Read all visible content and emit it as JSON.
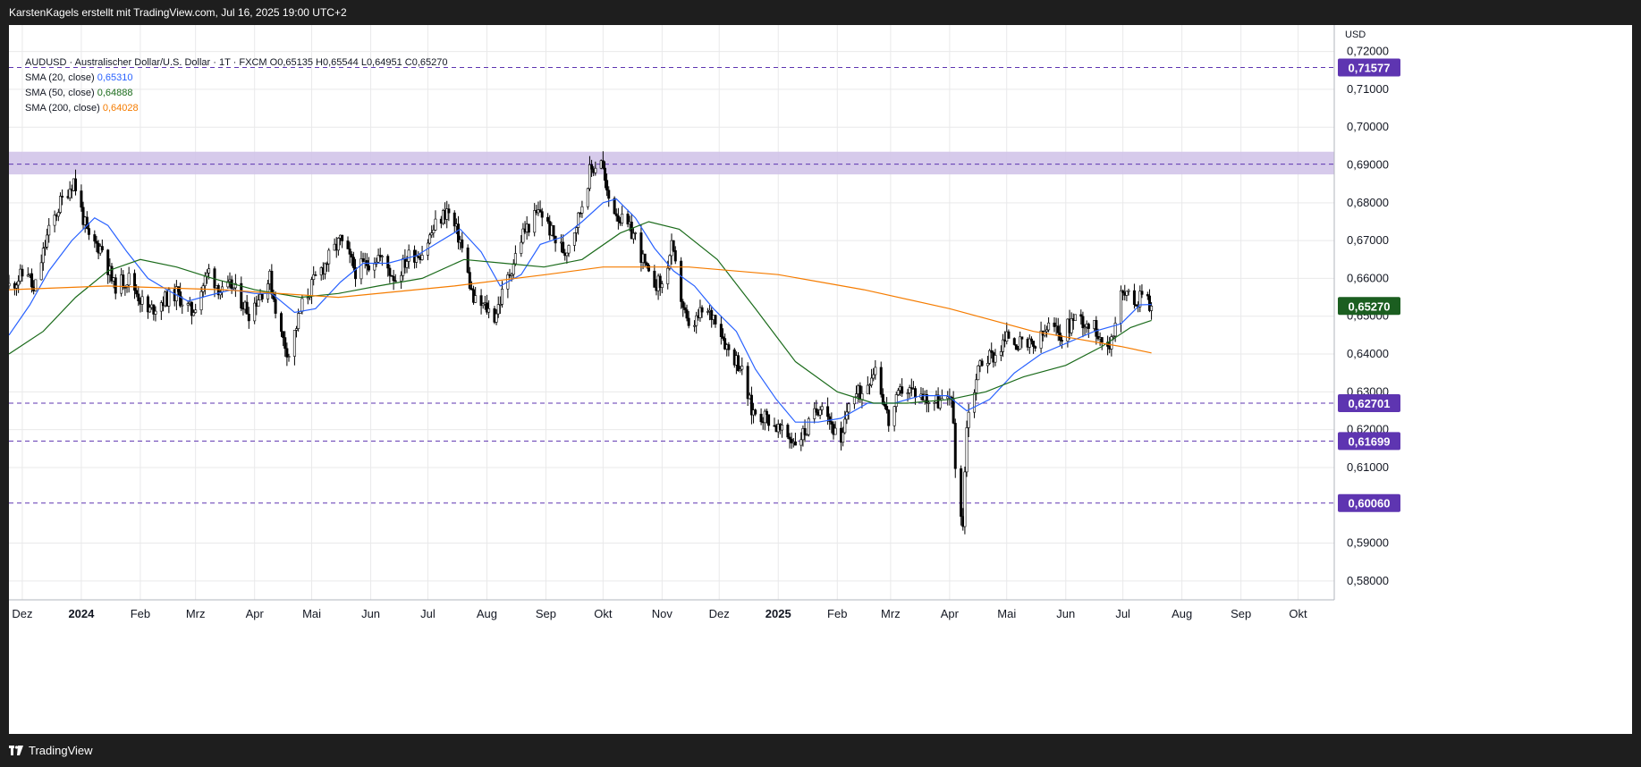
{
  "header": {
    "attribution": "KarstenKagels erstellt mit TradingView.com, Jul 16, 2025 19:00 UTC+2"
  },
  "footer": {
    "brand": "TradingView"
  },
  "legend": {
    "symbol_line": "AUDUSD · Australischer Dollar/U.S. Dollar · 1T · FXCM",
    "ohlc": {
      "o_label": "O",
      "o": "0,65135",
      "h_label": "H",
      "h": "0,65544",
      "l_label": "L",
      "l": "0,64951",
      "c_label": "C",
      "c": "0,65270"
    },
    "indicators": [
      {
        "label": "SMA (20, close)",
        "value": "0,65310",
        "color": "#2962ff"
      },
      {
        "label": "SMA (50, close)",
        "value": "0,64888",
        "color": "#1b6b1b"
      },
      {
        "label": "SMA (200, close)",
        "value": "0,64028",
        "color": "#f57c00"
      }
    ]
  },
  "colors": {
    "up": "#ffffff",
    "down": "#000000",
    "candle_border": "#000000",
    "zone": "#d1c4e9",
    "hline": "#5e35b1",
    "label_bg": "#5e35b1",
    "last_price_bg": "#1b5e20",
    "grid": "#e9e9ea"
  },
  "chart_data": {
    "type": "candlestick",
    "symbol": "AUDUSD",
    "timeframe": "1T",
    "currency_label": "USD",
    "ylim": [
      0.575,
      0.727
    ],
    "y_ticks": [
      {
        "value": 0.72,
        "label": "0,72000"
      },
      {
        "value": 0.71,
        "label": "0,71000"
      },
      {
        "value": 0.7,
        "label": "0,70000"
      },
      {
        "value": 0.69,
        "label": "0,69000"
      },
      {
        "value": 0.68,
        "label": "0,68000"
      },
      {
        "value": 0.67,
        "label": "0,67000"
      },
      {
        "value": 0.66,
        "label": "0,66000"
      },
      {
        "value": 0.65,
        "label": "0,65000"
      },
      {
        "value": 0.64,
        "label": "0,64000"
      },
      {
        "value": 0.63,
        "label": "0,63000"
      },
      {
        "value": 0.62,
        "label": "0,62000"
      },
      {
        "value": 0.61,
        "label": "0,61000"
      },
      {
        "value": 0.59,
        "label": "0,59000"
      },
      {
        "value": 0.58,
        "label": "0,58000"
      }
    ],
    "x_ticks": [
      {
        "date": "2023-12-01",
        "label": "Dez",
        "bold": false
      },
      {
        "date": "2024-01-01",
        "label": "2024",
        "bold": true
      },
      {
        "date": "2024-02-01",
        "label": "Feb",
        "bold": false
      },
      {
        "date": "2024-03-01",
        "label": "Mrz",
        "bold": false
      },
      {
        "date": "2024-04-01",
        "label": "Apr",
        "bold": false
      },
      {
        "date": "2024-05-01",
        "label": "Mai",
        "bold": false
      },
      {
        "date": "2024-06-01",
        "label": "Jun",
        "bold": false
      },
      {
        "date": "2024-07-01",
        "label": "Jul",
        "bold": false
      },
      {
        "date": "2024-08-01",
        "label": "Aug",
        "bold": false
      },
      {
        "date": "2024-09-01",
        "label": "Sep",
        "bold": false
      },
      {
        "date": "2024-10-01",
        "label": "Okt",
        "bold": false
      },
      {
        "date": "2024-11-01",
        "label": "Nov",
        "bold": false
      },
      {
        "date": "2024-12-01",
        "label": "Dez",
        "bold": false
      },
      {
        "date": "2025-01-01",
        "label": "2025",
        "bold": true
      },
      {
        "date": "2025-02-01",
        "label": "Feb",
        "bold": false
      },
      {
        "date": "2025-03-01",
        "label": "Mrz",
        "bold": false
      },
      {
        "date": "2025-04-01",
        "label": "Apr",
        "bold": false
      },
      {
        "date": "2025-05-01",
        "label": "Mai",
        "bold": false
      },
      {
        "date": "2025-06-01",
        "label": "Jun",
        "bold": false
      },
      {
        "date": "2025-07-01",
        "label": "Jul",
        "bold": false
      },
      {
        "date": "2025-08-01",
        "label": "Aug",
        "bold": false
      },
      {
        "date": "2025-09-01",
        "label": "Sep",
        "bold": false
      },
      {
        "date": "2025-10-01",
        "label": "Okt",
        "bold": false
      }
    ],
    "x_range": [
      "2023-11-24",
      "2025-10-20"
    ],
    "resistance_zone": [
      0.6875,
      0.6935
    ],
    "zone_midline": 0.6902,
    "horizontal_levels": [
      {
        "value": 0.71577,
        "label": "0,71577"
      },
      {
        "value": 0.62701,
        "label": "0,62701"
      },
      {
        "value": 0.61699,
        "label": "0,61699"
      },
      {
        "value": 0.6006,
        "label": "0,60060"
      }
    ],
    "last_price": {
      "value": 0.6527,
      "label": "0,65270"
    },
    "candle_anchors": [
      [
        "2023-11-24",
        0.658
      ],
      [
        "2023-12-04",
        0.662
      ],
      [
        "2023-12-07",
        0.656
      ],
      [
        "2023-12-14",
        0.671
      ],
      [
        "2023-12-21",
        0.68
      ],
      [
        "2023-12-28",
        0.686
      ],
      [
        "2024-01-05",
        0.67
      ],
      [
        "2024-01-12",
        0.668
      ],
      [
        "2024-01-18",
        0.658
      ],
      [
        "2024-01-26",
        0.66
      ],
      [
        "2024-02-05",
        0.651
      ],
      [
        "2024-02-12",
        0.654
      ],
      [
        "2024-02-20",
        0.656
      ],
      [
        "2024-02-28",
        0.651
      ],
      [
        "2024-03-08",
        0.662
      ],
      [
        "2024-03-15",
        0.656
      ],
      [
        "2024-03-20",
        0.658
      ],
      [
        "2024-03-29",
        0.651
      ],
      [
        "2024-04-09",
        0.66
      ],
      [
        "2024-04-15",
        0.645
      ],
      [
        "2024-04-19",
        0.64
      ],
      [
        "2024-04-26",
        0.653
      ],
      [
        "2024-05-03",
        0.66
      ],
      [
        "2024-05-16",
        0.67
      ],
      [
        "2024-05-24",
        0.662
      ],
      [
        "2024-06-05",
        0.666
      ],
      [
        "2024-06-14",
        0.66
      ],
      [
        "2024-06-21",
        0.666
      ],
      [
        "2024-06-28",
        0.667
      ],
      [
        "2024-07-05",
        0.674
      ],
      [
        "2024-07-11",
        0.678
      ],
      [
        "2024-07-18",
        0.67
      ],
      [
        "2024-07-25",
        0.654
      ],
      [
        "2024-08-01",
        0.652
      ],
      [
        "2024-08-05",
        0.65
      ],
      [
        "2024-08-12",
        0.66
      ],
      [
        "2024-08-20",
        0.672
      ],
      [
        "2024-08-29",
        0.678
      ],
      [
        "2024-09-06",
        0.67
      ],
      [
        "2024-09-11",
        0.667
      ],
      [
        "2024-09-18",
        0.676
      ],
      [
        "2024-09-24",
        0.688
      ],
      [
        "2024-09-30",
        0.692
      ],
      [
        "2024-10-03",
        0.682
      ],
      [
        "2024-10-11",
        0.675
      ],
      [
        "2024-10-18",
        0.671
      ],
      [
        "2024-10-25",
        0.66
      ],
      [
        "2024-11-01",
        0.658
      ],
      [
        "2024-11-06",
        0.668
      ],
      [
        "2024-11-11",
        0.655
      ],
      [
        "2024-11-15",
        0.646
      ],
      [
        "2024-11-22",
        0.651
      ],
      [
        "2024-11-29",
        0.65
      ],
      [
        "2024-12-05",
        0.642
      ],
      [
        "2024-12-12",
        0.637
      ],
      [
        "2024-12-18",
        0.625
      ],
      [
        "2024-12-27",
        0.623
      ],
      [
        "2025-01-03",
        0.619
      ],
      [
        "2025-01-10",
        0.617
      ],
      [
        "2025-01-16",
        0.62
      ],
      [
        "2025-01-24",
        0.628
      ],
      [
        "2025-02-03",
        0.615
      ],
      [
        "2025-02-07",
        0.628
      ],
      [
        "2025-02-14",
        0.63
      ],
      [
        "2025-02-21",
        0.637
      ],
      [
        "2025-02-28",
        0.622
      ],
      [
        "2025-03-07",
        0.631
      ],
      [
        "2025-03-14",
        0.63
      ],
      [
        "2025-03-21",
        0.628
      ],
      [
        "2025-03-31",
        0.627
      ],
      [
        "2025-04-02",
        0.63
      ],
      [
        "2025-04-04",
        0.61
      ],
      [
        "2025-04-08",
        0.595
      ],
      [
        "2025-04-10",
        0.622
      ],
      [
        "2025-04-17",
        0.638
      ],
      [
        "2025-04-25",
        0.64
      ],
      [
        "2025-05-02",
        0.645
      ],
      [
        "2025-05-09",
        0.642
      ],
      [
        "2025-05-16",
        0.642
      ],
      [
        "2025-05-23",
        0.647
      ],
      [
        "2025-05-30",
        0.645
      ],
      [
        "2025-06-06",
        0.65
      ],
      [
        "2025-06-13",
        0.648
      ],
      [
        "2025-06-20",
        0.645
      ],
      [
        "2025-06-23",
        0.64
      ],
      [
        "2025-06-30",
        0.656
      ],
      [
        "2025-07-04",
        0.655
      ],
      [
        "2025-07-09",
        0.654
      ],
      [
        "2025-07-11",
        0.658
      ],
      [
        "2025-07-15",
        0.6535
      ],
      [
        "2025-07-16",
        0.6527
      ]
    ],
    "series": [
      {
        "name": "SMA (20, close)",
        "color": "#2962ff",
        "points": [
          [
            "2023-11-24",
            0.645
          ],
          [
            "2023-12-05",
            0.653
          ],
          [
            "2023-12-15",
            0.662
          ],
          [
            "2023-12-27",
            0.67
          ],
          [
            "2024-01-08",
            0.676
          ],
          [
            "2024-01-15",
            0.674
          ],
          [
            "2024-01-25",
            0.667
          ],
          [
            "2024-02-05",
            0.66
          ],
          [
            "2024-02-15",
            0.657
          ],
          [
            "2024-02-26",
            0.654
          ],
          [
            "2024-03-08",
            0.6555
          ],
          [
            "2024-03-20",
            0.657
          ],
          [
            "2024-04-01",
            0.656
          ],
          [
            "2024-04-10",
            0.656
          ],
          [
            "2024-04-22",
            0.651
          ],
          [
            "2024-05-03",
            0.652
          ],
          [
            "2024-05-16",
            0.659
          ],
          [
            "2024-05-28",
            0.664
          ],
          [
            "2024-06-10",
            0.664
          ],
          [
            "2024-06-25",
            0.666
          ],
          [
            "2024-07-08",
            0.67
          ],
          [
            "2024-07-18",
            0.673
          ],
          [
            "2024-07-29",
            0.667
          ],
          [
            "2024-08-08",
            0.658
          ],
          [
            "2024-08-19",
            0.661
          ],
          [
            "2024-08-29",
            0.669
          ],
          [
            "2024-09-10",
            0.671
          ],
          [
            "2024-09-20",
            0.675
          ],
          [
            "2024-10-01",
            0.68
          ],
          [
            "2024-10-08",
            0.681
          ],
          [
            "2024-10-18",
            0.676
          ],
          [
            "2024-10-28",
            0.668
          ],
          [
            "2024-11-07",
            0.662
          ],
          [
            "2024-11-18",
            0.658
          ],
          [
            "2024-11-28",
            0.652
          ],
          [
            "2024-12-10",
            0.646
          ],
          [
            "2024-12-20",
            0.636
          ],
          [
            "2024-12-31",
            0.628
          ],
          [
            "2025-01-10",
            0.622
          ],
          [
            "2025-01-22",
            0.622
          ],
          [
            "2025-02-03",
            0.623
          ],
          [
            "2025-02-17",
            0.627
          ],
          [
            "2025-03-03",
            0.627
          ],
          [
            "2025-03-17",
            0.629
          ],
          [
            "2025-03-31",
            0.629
          ],
          [
            "2025-04-10",
            0.625
          ],
          [
            "2025-04-22",
            0.628
          ],
          [
            "2025-05-05",
            0.635
          ],
          [
            "2025-05-19",
            0.64
          ],
          [
            "2025-06-02",
            0.643
          ],
          [
            "2025-06-16",
            0.646
          ],
          [
            "2025-06-30",
            0.648
          ],
          [
            "2025-07-10",
            0.653
          ],
          [
            "2025-07-16",
            0.6531
          ]
        ]
      },
      {
        "name": "SMA (50, close)",
        "color": "#1b6b1b",
        "points": [
          [
            "2023-11-24",
            0.64
          ],
          [
            "2023-12-12",
            0.646
          ],
          [
            "2023-12-29",
            0.655
          ],
          [
            "2024-01-15",
            0.662
          ],
          [
            "2024-02-01",
            0.665
          ],
          [
            "2024-02-20",
            0.663
          ],
          [
            "2024-03-10",
            0.66
          ],
          [
            "2024-04-01",
            0.657
          ],
          [
            "2024-04-25",
            0.655
          ],
          [
            "2024-05-15",
            0.656
          ],
          [
            "2024-06-05",
            0.658
          ],
          [
            "2024-06-28",
            0.66
          ],
          [
            "2024-07-20",
            0.665
          ],
          [
            "2024-08-10",
            0.664
          ],
          [
            "2024-08-31",
            0.663
          ],
          [
            "2024-09-20",
            0.665
          ],
          [
            "2024-10-10",
            0.672
          ],
          [
            "2024-10-25",
            0.675
          ],
          [
            "2024-11-10",
            0.673
          ],
          [
            "2024-11-30",
            0.665
          ],
          [
            "2024-12-20",
            0.652
          ],
          [
            "2025-01-10",
            0.638
          ],
          [
            "2025-02-01",
            0.63
          ],
          [
            "2025-02-20",
            0.627
          ],
          [
            "2025-03-10",
            0.627
          ],
          [
            "2025-04-01",
            0.628
          ],
          [
            "2025-04-20",
            0.63
          ],
          [
            "2025-05-10",
            0.634
          ],
          [
            "2025-06-01",
            0.637
          ],
          [
            "2025-06-20",
            0.642
          ],
          [
            "2025-07-05",
            0.647
          ],
          [
            "2025-07-16",
            0.6489
          ]
        ]
      },
      {
        "name": "SMA (200, close)",
        "color": "#f57c00",
        "points": [
          [
            "2023-11-24",
            0.657
          ],
          [
            "2024-01-15",
            0.658
          ],
          [
            "2024-03-15",
            0.657
          ],
          [
            "2024-05-15",
            0.655
          ],
          [
            "2024-07-15",
            0.658
          ],
          [
            "2024-09-01",
            0.661
          ],
          [
            "2024-10-01",
            0.663
          ],
          [
            "2024-11-15",
            0.663
          ],
          [
            "2025-01-01",
            0.661
          ],
          [
            "2025-02-15",
            0.657
          ],
          [
            "2025-04-01",
            0.652
          ],
          [
            "2025-05-15",
            0.646
          ],
          [
            "2025-06-30",
            0.642
          ],
          [
            "2025-07-16",
            0.6403
          ]
        ]
      }
    ]
  }
}
